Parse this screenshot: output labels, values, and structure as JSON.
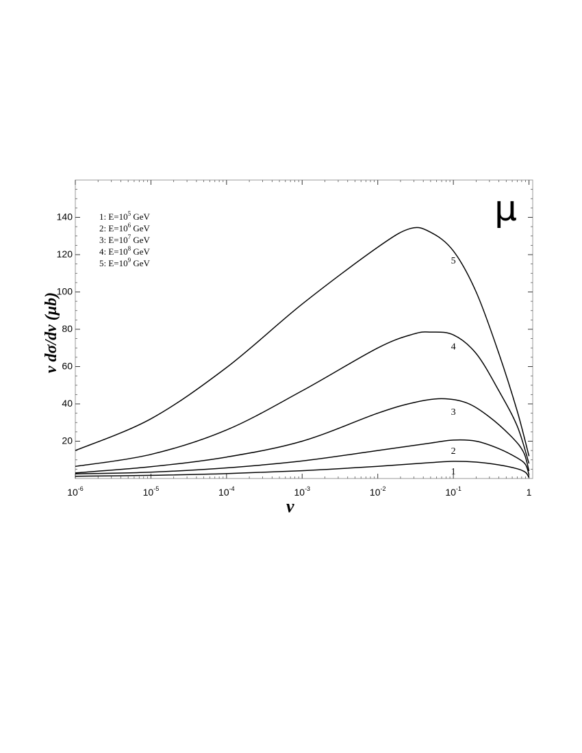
{
  "chart_data": {
    "type": "line",
    "title": "",
    "corner_label": "μ",
    "xlabel": "v",
    "ylabel": "v dσ/dv (μb)",
    "xscale": "log",
    "xlim": [
      1e-06,
      1.12
    ],
    "ylim": [
      0,
      160
    ],
    "x_tick_values": [
      1e-06,
      1e-05,
      0.0001,
      0.001,
      0.01,
      0.1,
      1
    ],
    "x_tick_labels": [
      {
        "base": "10",
        "exp": "-6"
      },
      {
        "base": "10",
        "exp": "-5"
      },
      {
        "base": "10",
        "exp": "-4"
      },
      {
        "base": "10",
        "exp": "-3"
      },
      {
        "base": "10",
        "exp": "-2"
      },
      {
        "base": "10",
        "exp": "-1"
      },
      {
        "base": "1",
        "exp": ""
      }
    ],
    "y_tick_values": [
      20,
      40,
      60,
      80,
      100,
      120,
      140
    ],
    "y_tick_labels": [
      "20",
      "40",
      "60",
      "80",
      "100",
      "120",
      "140"
    ],
    "grid": false,
    "legend_position": "top-left",
    "legend": [
      {
        "prefix": "1: E=10",
        "exp": "5",
        "suffix": " GeV"
      },
      {
        "prefix": "2: E=10",
        "exp": "6",
        "suffix": " GeV"
      },
      {
        "prefix": "3: E=10",
        "exp": "7",
        "suffix": " GeV"
      },
      {
        "prefix": "4: E=10",
        "exp": "8",
        "suffix": " GeV"
      },
      {
        "prefix": "5: E=10",
        "exp": "9",
        "suffix": " GeV"
      }
    ],
    "series": [
      {
        "label": "1",
        "label_at": [
          0.1,
          4
        ],
        "points": [
          [
            1e-06,
            1.2
          ],
          [
            1e-05,
            1.7
          ],
          [
            0.0001,
            2.6
          ],
          [
            0.001,
            4.2
          ],
          [
            0.01,
            6.5
          ],
          [
            0.05,
            8.5
          ],
          [
            0.1,
            9.2
          ],
          [
            0.2,
            8.8
          ],
          [
            0.4,
            7.3
          ],
          [
            0.7,
            5.2
          ],
          [
            0.9,
            3.3
          ],
          [
            1.0,
            0.5
          ]
        ]
      },
      {
        "label": "2",
        "label_at": [
          0.1,
          15
        ],
        "points": [
          [
            1e-06,
            2.5
          ],
          [
            1e-05,
            3.4
          ],
          [
            0.0001,
            5.7
          ],
          [
            0.001,
            9.4
          ],
          [
            0.01,
            15
          ],
          [
            0.05,
            19
          ],
          [
            0.1,
            20.6
          ],
          [
            0.2,
            20
          ],
          [
            0.4,
            16
          ],
          [
            0.7,
            11
          ],
          [
            0.9,
            7.5
          ],
          [
            1.0,
            2
          ]
        ]
      },
      {
        "label": "3",
        "label_at": [
          0.1,
          36
        ],
        "points": [
          [
            1e-06,
            3
          ],
          [
            1e-05,
            6.3
          ],
          [
            0.0001,
            11.5
          ],
          [
            0.001,
            20
          ],
          [
            0.01,
            35
          ],
          [
            0.03,
            40.7
          ],
          [
            0.07,
            42.8
          ],
          [
            0.15,
            40.5
          ],
          [
            0.3,
            33
          ],
          [
            0.6,
            22
          ],
          [
            0.85,
            14
          ],
          [
            1.0,
            4
          ]
        ]
      },
      {
        "label": "4",
        "label_at": [
          0.1,
          71
        ],
        "points": [
          [
            1e-06,
            6.5
          ],
          [
            1e-05,
            12.9
          ],
          [
            0.0001,
            26
          ],
          [
            0.001,
            47
          ],
          [
            0.01,
            70
          ],
          [
            0.03,
            77.5
          ],
          [
            0.05,
            78.5
          ],
          [
            0.1,
            77
          ],
          [
            0.2,
            67
          ],
          [
            0.4,
            47
          ],
          [
            0.7,
            28
          ],
          [
            1.0,
            8
          ]
        ]
      },
      {
        "label": "5",
        "label_at": [
          0.1,
          117
        ],
        "points": [
          [
            1e-06,
            15
          ],
          [
            1e-05,
            32
          ],
          [
            0.0001,
            59.5
          ],
          [
            0.001,
            93.5
          ],
          [
            0.01,
            124
          ],
          [
            0.027,
            134
          ],
          [
            0.05,
            132
          ],
          [
            0.1,
            122
          ],
          [
            0.2,
            100
          ],
          [
            0.4,
            67
          ],
          [
            0.7,
            36
          ],
          [
            1.0,
            12
          ]
        ]
      }
    ]
  }
}
